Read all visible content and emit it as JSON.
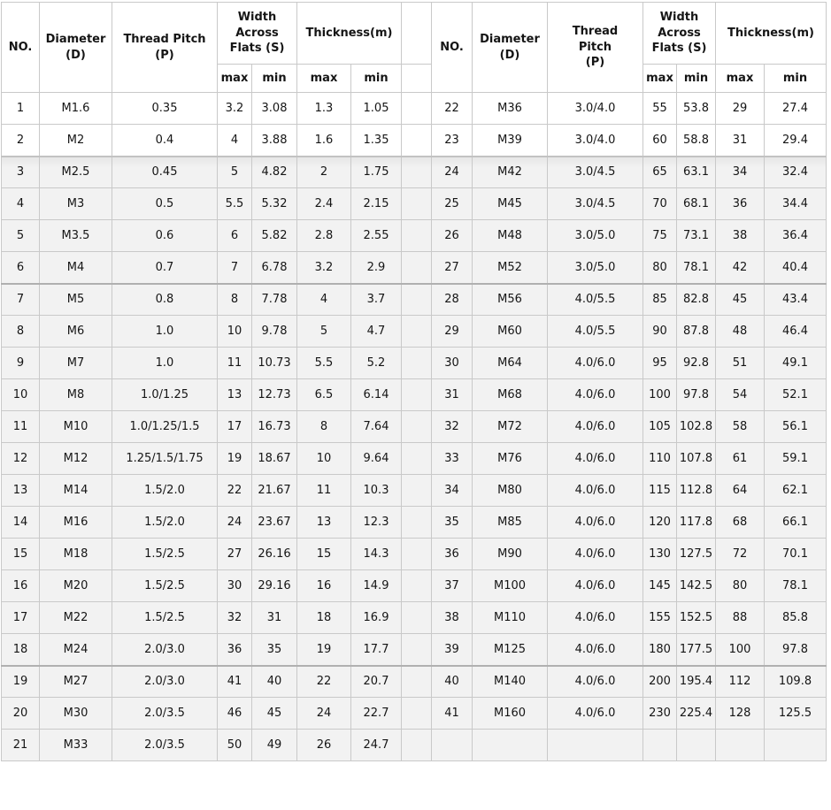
{
  "colors": {
    "page_background": "#ffffff",
    "row_band_gray": "#f2f2f2",
    "grid_line": "#c9c9c9",
    "seam_line": "#b0b0b0",
    "text": "#151515"
  },
  "table": {
    "header": {
      "no": "NO.",
      "diameter": "Diameter\n(D)",
      "thread_pitch_left": "Thread Pitch\n(P)",
      "thread_pitch_right": "Thread\nPitch\n(P)",
      "width_across_flats": "Width\nAcross\nFlats (S)",
      "thickness": "Thickness(m)",
      "max": "max",
      "min": "min"
    }
  },
  "chart_data": {
    "type": "table",
    "title": "",
    "columns": [
      "NO.",
      "Diameter (D)",
      "Thread Pitch (P)",
      "Width Across Flats (S) max",
      "Width Across Flats (S) min",
      "Thickness(m) max",
      "Thickness(m) min"
    ],
    "layout": {
      "split": "two side-by-side halves: rows 1-21 in left half, rows 22-41 in right half, last right-hand row empty",
      "grid": "on",
      "white_band_rows": [
        1,
        2,
        22,
        23
      ],
      "seam_below_rows": [
        2,
        6,
        18
      ]
    },
    "rows": [
      [
        "1",
        "M1.6",
        "0.35",
        "3.2",
        "3.08",
        "1.3",
        "1.05"
      ],
      [
        "2",
        "M2",
        "0.4",
        "4",
        "3.88",
        "1.6",
        "1.35"
      ],
      [
        "3",
        "M2.5",
        "0.45",
        "5",
        "4.82",
        "2",
        "1.75"
      ],
      [
        "4",
        "M3",
        "0.5",
        "5.5",
        "5.32",
        "2.4",
        "2.15"
      ],
      [
        "5",
        "M3.5",
        "0.6",
        "6",
        "5.82",
        "2.8",
        "2.55"
      ],
      [
        "6",
        "M4",
        "0.7",
        "7",
        "6.78",
        "3.2",
        "2.9"
      ],
      [
        "7",
        "M5",
        "0.8",
        "8",
        "7.78",
        "4",
        "3.7"
      ],
      [
        "8",
        "M6",
        "1.0",
        "10",
        "9.78",
        "5",
        "4.7"
      ],
      [
        "9",
        "M7",
        "1.0",
        "11",
        "10.73",
        "5.5",
        "5.2"
      ],
      [
        "10",
        "M8",
        "1.0/1.25",
        "13",
        "12.73",
        "6.5",
        "6.14"
      ],
      [
        "11",
        "M10",
        "1.0/1.25/1.5",
        "17",
        "16.73",
        "8",
        "7.64"
      ],
      [
        "12",
        "M12",
        "1.25/1.5/1.75",
        "19",
        "18.67",
        "10",
        "9.64"
      ],
      [
        "13",
        "M14",
        "1.5/2.0",
        "22",
        "21.67",
        "11",
        "10.3"
      ],
      [
        "14",
        "M16",
        "1.5/2.0",
        "24",
        "23.67",
        "13",
        "12.3"
      ],
      [
        "15",
        "M18",
        "1.5/2.5",
        "27",
        "26.16",
        "15",
        "14.3"
      ],
      [
        "16",
        "M20",
        "1.5/2.5",
        "30",
        "29.16",
        "16",
        "14.9"
      ],
      [
        "17",
        "M22",
        "1.5/2.5",
        "32",
        "31",
        "18",
        "16.9"
      ],
      [
        "18",
        "M24",
        "2.0/3.0",
        "36",
        "35",
        "19",
        "17.7"
      ],
      [
        "19",
        "M27",
        "2.0/3.0",
        "41",
        "40",
        "22",
        "20.7"
      ],
      [
        "20",
        "M30",
        "2.0/3.5",
        "46",
        "45",
        "24",
        "22.7"
      ],
      [
        "21",
        "M33",
        "2.0/3.5",
        "50",
        "49",
        "26",
        "24.7"
      ],
      [
        "22",
        "M36",
        "3.0/4.0",
        "55",
        "53.8",
        "29",
        "27.4"
      ],
      [
        "23",
        "M39",
        "3.0/4.0",
        "60",
        "58.8",
        "31",
        "29.4"
      ],
      [
        "24",
        "M42",
        "3.0/4.5",
        "65",
        "63.1",
        "34",
        "32.4"
      ],
      [
        "25",
        "M45",
        "3.0/4.5",
        "70",
        "68.1",
        "36",
        "34.4"
      ],
      [
        "26",
        "M48",
        "3.0/5.0",
        "75",
        "73.1",
        "38",
        "36.4"
      ],
      [
        "27",
        "M52",
        "3.0/5.0",
        "80",
        "78.1",
        "42",
        "40.4"
      ],
      [
        "28",
        "M56",
        "4.0/5.5",
        "85",
        "82.8",
        "45",
        "43.4"
      ],
      [
        "29",
        "M60",
        "4.0/5.5",
        "90",
        "87.8",
        "48",
        "46.4"
      ],
      [
        "30",
        "M64",
        "4.0/6.0",
        "95",
        "92.8",
        "51",
        "49.1"
      ],
      [
        "31",
        "M68",
        "4.0/6.0",
        "100",
        "97.8",
        "54",
        "52.1"
      ],
      [
        "32",
        "M72",
        "4.0/6.0",
        "105",
        "102.8",
        "58",
        "56.1"
      ],
      [
        "33",
        "M76",
        "4.0/6.0",
        "110",
        "107.8",
        "61",
        "59.1"
      ],
      [
        "34",
        "M80",
        "4.0/6.0",
        "115",
        "112.8",
        "64",
        "62.1"
      ],
      [
        "35",
        "M85",
        "4.0/6.0",
        "120",
        "117.8",
        "68",
        "66.1"
      ],
      [
        "36",
        "M90",
        "4.0/6.0",
        "130",
        "127.5",
        "72",
        "70.1"
      ],
      [
        "37",
        "M100",
        "4.0/6.0",
        "145",
        "142.5",
        "80",
        "78.1"
      ],
      [
        "38",
        "M110",
        "4.0/6.0",
        "155",
        "152.5",
        "88",
        "85.8"
      ],
      [
        "39",
        "M125",
        "4.0/6.0",
        "180",
        "177.5",
        "100",
        "97.8"
      ],
      [
        "40",
        "M140",
        "4.0/6.0",
        "200",
        "195.4",
        "112",
        "109.8"
      ],
      [
        "41",
        "M160",
        "4.0/6.0",
        "230",
        "225.4",
        "128",
        "125.5"
      ]
    ]
  }
}
